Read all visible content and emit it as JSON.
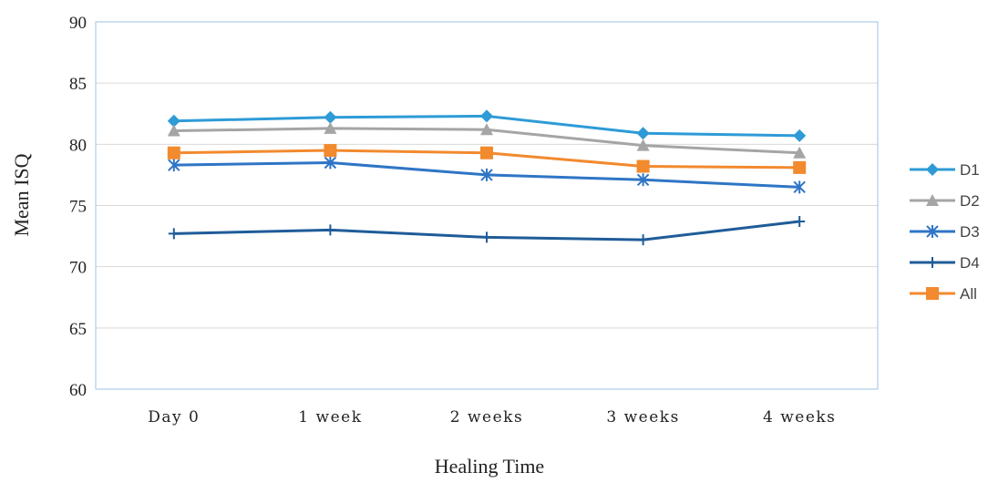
{
  "chart_data": {
    "type": "line",
    "categories": [
      "Day 0",
      "1 week",
      "2 weeks",
      "3 weeks",
      "4 weeks"
    ],
    "series": [
      {
        "name": "D1",
        "values": [
          81.9,
          82.2,
          82.3,
          80.9,
          80.7
        ],
        "color": "#2E9BD6",
        "marker": "diamond"
      },
      {
        "name": "D2",
        "values": [
          81.1,
          81.3,
          81.2,
          79.9,
          79.3
        ],
        "color": "#A5A5A5",
        "marker": "triangle"
      },
      {
        "name": "D3",
        "values": [
          78.3,
          78.5,
          77.5,
          77.1,
          76.5
        ],
        "color": "#2F75C6",
        "marker": "asterisk"
      },
      {
        "name": "D4",
        "values": [
          72.7,
          73.0,
          72.4,
          72.2,
          73.7
        ],
        "color": "#1F5C99",
        "marker": "plus"
      },
      {
        "name": "All",
        "values": [
          79.3,
          79.5,
          79.3,
          78.2,
          78.1
        ],
        "color": "#F28A2E",
        "marker": "square"
      }
    ],
    "yticks": [
      "60",
      "65",
      "70",
      "75",
      "80",
      "85",
      "90"
    ],
    "ylim": [
      60,
      90
    ],
    "xlabel": "Healing Time",
    "ylabel": "Mean ISQ",
    "grid": true,
    "legend": "right",
    "colors": {
      "grid": "#D9D9D9",
      "frame": "#9DC3E6"
    }
  }
}
